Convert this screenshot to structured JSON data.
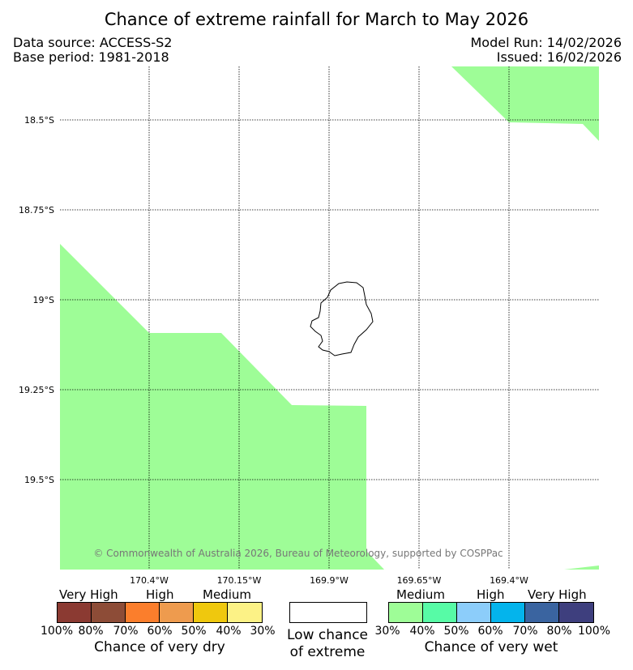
{
  "header": {
    "title": "Chance of extreme rainfall for March to May 2026",
    "data_source": "Data source: ACCESS-S2",
    "base_period": "Base period: 1981-2018",
    "model_run": "Model Run: 14/02/2026",
    "issued": "Issued: 16/02/2026"
  },
  "map": {
    "lat_labels": [
      "18.5°S",
      "18.75°S",
      "19°S",
      "19.25°S",
      "19.5°S"
    ],
    "lon_labels": [
      "170.4°W",
      "170.15°W",
      "169.9°W",
      "169.65°W",
      "169.4°W"
    ],
    "copyright": "© Commonwealth of Australia 2026, Bureau of Meteorology, supported by COSPPac",
    "region_color": "#9efd97"
  },
  "legend": {
    "dry": {
      "categories": [
        "Very High",
        "High",
        "Medium"
      ],
      "colors": [
        "#8b3a32",
        "#8d4c37",
        "#fb7e2c",
        "#ee9b4e",
        "#efc80e",
        "#fcf286"
      ],
      "pcts": [
        "100%",
        "80%",
        "70%",
        "60%",
        "50%",
        "40%",
        "30%"
      ],
      "caption": "Chance of very dry"
    },
    "low": {
      "line1": "Low chance",
      "line2": "of extreme"
    },
    "wet": {
      "categories": [
        "Medium",
        "High",
        "Very High"
      ],
      "colors": [
        "#9efd97",
        "#57fba6",
        "#8ccdfa",
        "#04b4ec",
        "#3a64a0",
        "#3e3f7e"
      ],
      "pcts": [
        "30%",
        "40%",
        "50%",
        "60%",
        "70%",
        "80%",
        "100%"
      ],
      "caption": "Chance of very wet"
    }
  }
}
